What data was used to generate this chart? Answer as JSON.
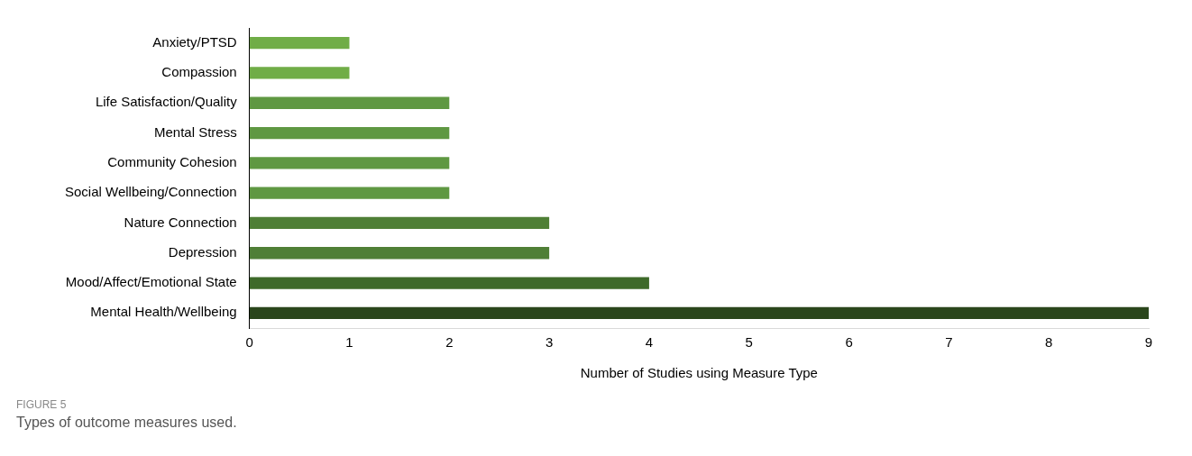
{
  "chart_data": {
    "type": "bar",
    "orientation": "horizontal",
    "xlabel": "Number of Studies using Measure Type",
    "categories": [
      "Anxiety/PTSD",
      "Compassion",
      "Life Satisfaction/Quality",
      "Mental Stress",
      "Community Cohesion",
      "Social Wellbeing/Connection",
      "Nature Connection",
      "Depression",
      "Mood/Affect/Emotional State",
      "Mental Health/Wellbeing"
    ],
    "values": [
      1,
      1,
      2,
      2,
      2,
      2,
      3,
      3,
      4,
      9
    ],
    "colors": [
      "#70ad47",
      "#70ad47",
      "#5f9842",
      "#5f9842",
      "#5f9842",
      "#5f9842",
      "#4f7f36",
      "#4f7f36",
      "#3e6a2a",
      "#2a461b"
    ],
    "xlim": [
      0,
      9
    ],
    "xticks": [
      0,
      1,
      2,
      3,
      4,
      5,
      6,
      7,
      8,
      9
    ],
    "grid": false,
    "legend": false,
    "annotations": [
      "FIGURE 5",
      "Types of outcome measures used."
    ]
  }
}
